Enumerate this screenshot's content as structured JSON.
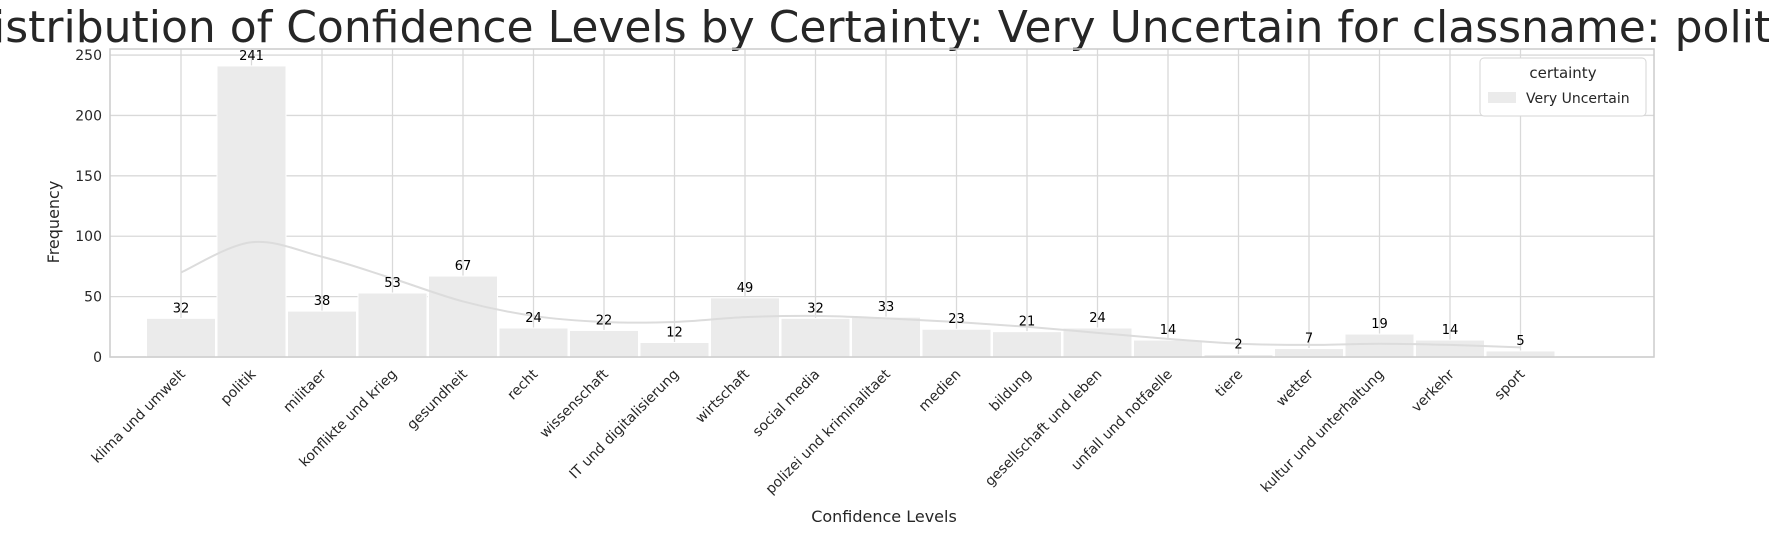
{
  "chart_data": {
    "type": "bar",
    "title": "Distribution of Confidence Levels by Certainty: Very Uncertain for classname: politik",
    "xlabel": "Confidence Levels",
    "ylabel": "Frequency",
    "ylim": [
      0,
      255
    ],
    "yticks": [
      0,
      50,
      100,
      150,
      200,
      250
    ],
    "categories": [
      "klima und umwelt",
      "politik",
      "militaer",
      "konflikte und krieg",
      "gesundheit",
      "recht",
      "wissenschaft",
      "IT und digitalisierung",
      "wirtschaft",
      "social media",
      "polizei und kriminalitaet",
      "medien",
      "bildung",
      "gesellschaft und leben",
      "unfall und notfaelle",
      "tiere",
      "wetter",
      "kultur und unterhaltung",
      "verkehr",
      "sport"
    ],
    "series": [
      {
        "name": "Very Uncertain",
        "values": [
          32,
          241,
          38,
          53,
          67,
          24,
          22,
          12,
          49,
          32,
          33,
          23,
          21,
          24,
          14,
          2,
          7,
          19,
          14,
          5
        ]
      }
    ],
    "data_labels": [
      "32",
      "241",
      "38",
      "53",
      "67",
      "24",
      "22",
      "12",
      "49",
      "32",
      "33",
      "23",
      "21",
      "24",
      "14",
      "2",
      "7",
      "19",
      "14",
      "5"
    ],
    "kde": {
      "x": [
        0,
        1,
        2,
        3,
        4,
        5,
        6,
        7,
        8,
        9,
        10,
        11,
        12,
        13,
        14,
        15,
        16,
        17,
        18,
        19
      ],
      "y": [
        70,
        95,
        83,
        65,
        46,
        34,
        29,
        29,
        33,
        34,
        32,
        29,
        25,
        20,
        15,
        11,
        10,
        11,
        10,
        8
      ]
    },
    "legend": {
      "title": "certainty",
      "entries": [
        "Very Uncertain"
      ],
      "position": "top-right"
    },
    "grid": true,
    "colors": {
      "bar": "#ebebeb",
      "kde": "#dcdcdc",
      "grid": "#d9d9d9",
      "spine": "#cccccc",
      "text": "#262626"
    }
  }
}
